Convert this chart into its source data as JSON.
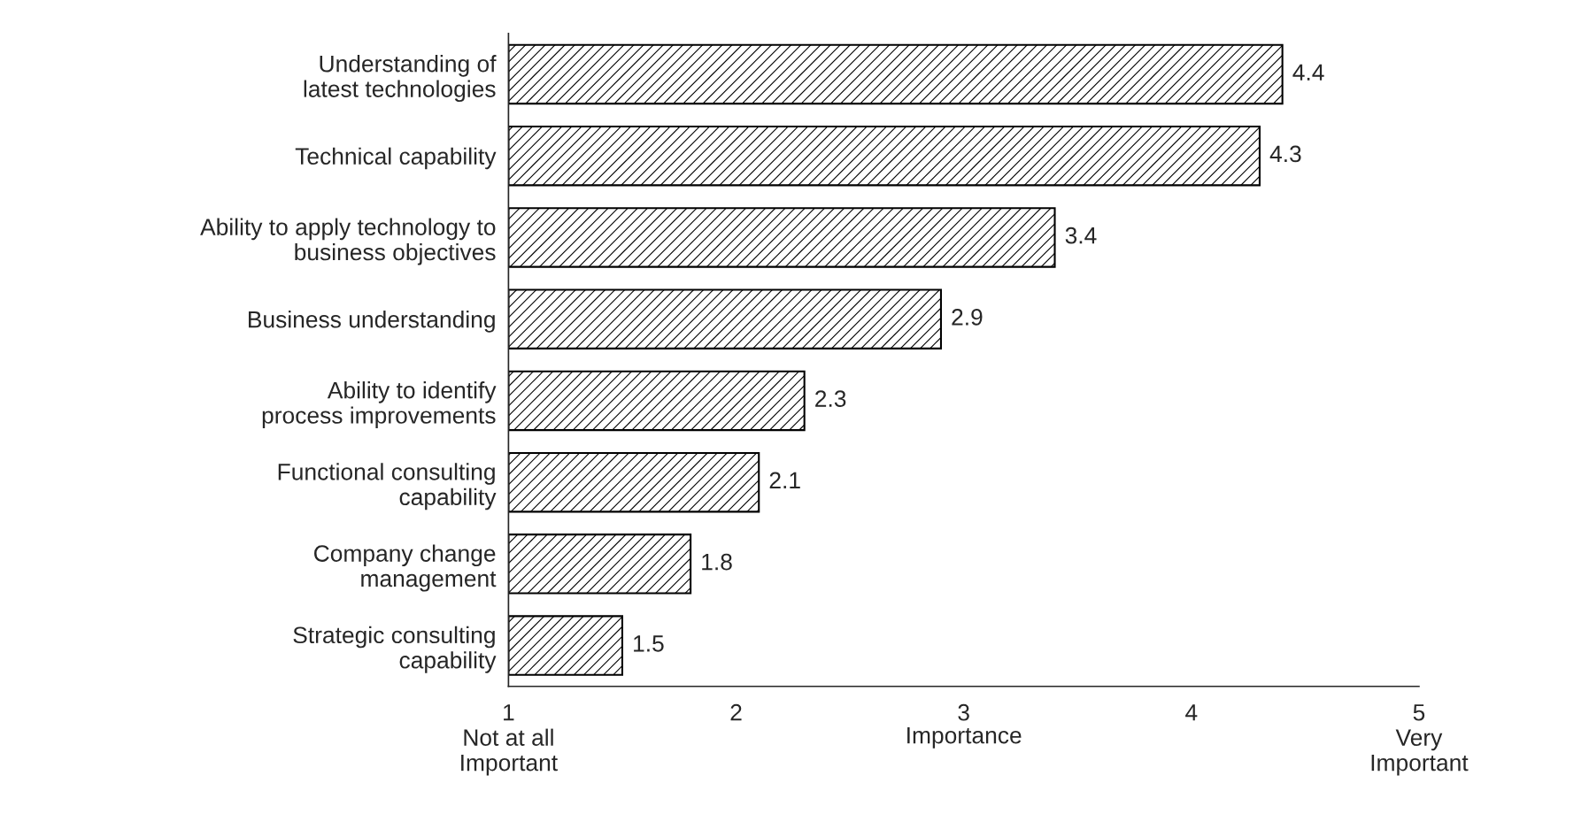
{
  "chart_data": {
    "type": "bar",
    "orientation": "horizontal",
    "xlabel": "Importance",
    "categories": [
      "Understanding of\nlatest technologies",
      "Technical capability",
      "Ability to apply technology to\nbusiness objectives",
      "Business understanding",
      "Ability to identify\nprocess improvements",
      "Functional consulting\ncapability",
      "Company change\nmanagement",
      "Strategic consulting\ncapability"
    ],
    "base": [
      1,
      1,
      1,
      1,
      1,
      1,
      1,
      1
    ],
    "values": [
      3.4,
      3.3,
      2.4,
      1.9,
      1.3,
      1.1,
      0.8,
      0.5
    ],
    "value_labels": [
      "4.4",
      "4.3",
      "3.4",
      "2.9",
      "2.3",
      "2.1",
      "1.8",
      "1.5"
    ],
    "color": "#000000",
    "xlim": [
      1,
      5
    ],
    "xticks": [
      {
        "value": 1,
        "label": "1\nNot at all\nImportant"
      },
      2,
      3,
      4,
      {
        "value": 5,
        "label": "5\nVery\nImportant"
      }
    ],
    "grid": false,
    "legend": false
  }
}
